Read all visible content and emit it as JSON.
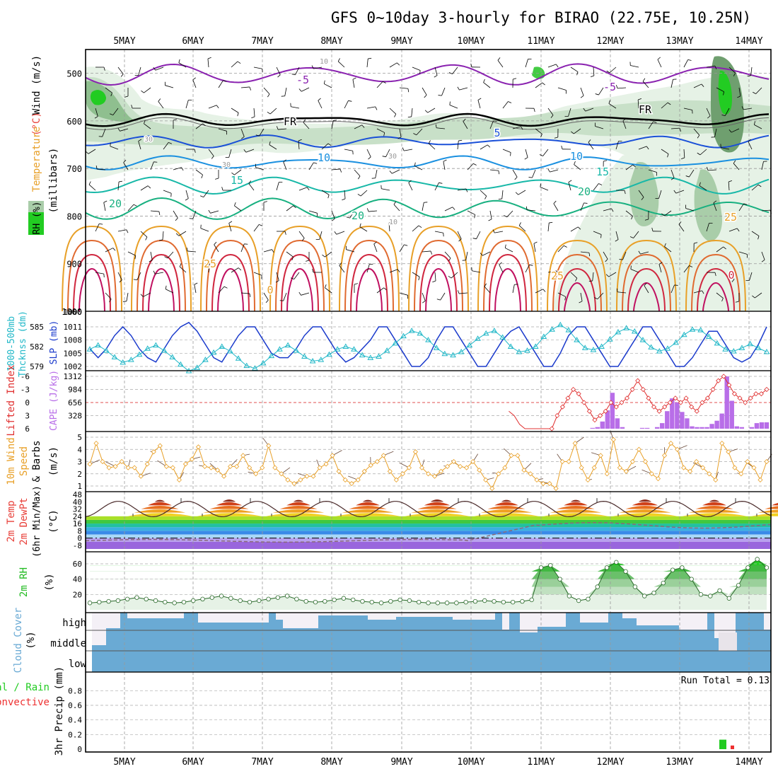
{
  "title": "GFS 0~10day 3-hourly for BIRAO (22.75E, 10.25N)",
  "days": [
    "5MAY",
    "6MAY",
    "7MAY",
    "8MAY",
    "9MAY",
    "10MAY",
    "11MAY",
    "12MAY",
    "13MAY",
    "14MAY"
  ],
  "colors": {
    "wind": "#000000",
    "temp_label": "#e8403a",
    "temp_word": "#e8a028",
    "rh_fill": "#22cc22",
    "slp": "#1a3acc",
    "thick": "#22b8c8",
    "li": "#e03030",
    "cape": "#b86ee8",
    "wind10": "#e8a028",
    "rh2m": "#22bb22",
    "cloud": "#6aaad4",
    "precip_total": "#22cc22",
    "precip_conv": "#ee3030",
    "dew": "#8a6a7a"
  },
  "panels": {
    "upper": {
      "y_label_wind": "Wind (m/s)",
      "y_label_temp_c": "(°C)",
      "y_label_temp": "Temperature",
      "y_label_rh": "RH (%)",
      "y_label_mb": "(millibars)",
      "y_ticks": [
        "500",
        "600",
        "700",
        "800",
        "900",
        "1000"
      ],
      "contours": {
        "labels": [
          {
            "text": "-5",
            "color": "#8a22b0"
          },
          {
            "text": "-5",
            "color": "#8a22b0"
          },
          {
            "text": "FR",
            "color": "#000000"
          },
          {
            "text": "FR",
            "color": "#000000"
          },
          {
            "text": "5",
            "color": "#1a50d8"
          },
          {
            "text": "10",
            "color": "#1a90e0"
          },
          {
            "text": "10",
            "color": "#1a90e0"
          },
          {
            "text": "15",
            "color": "#18b8a8"
          },
          {
            "text": "15",
            "color": "#18b8a8"
          },
          {
            "text": "20",
            "color": "#18b080"
          },
          {
            "text": "20",
            "color": "#18b080"
          },
          {
            "text": "20",
            "color": "#18b080"
          },
          {
            "text": "25",
            "color": "#e8a028"
          },
          {
            "text": "25",
            "color": "#e8a028"
          },
          {
            "text": "25",
            "color": "#e8a028"
          },
          {
            "text": "0",
            "color": "#e8a028"
          },
          {
            "text": "0",
            "color": "#d02840"
          },
          {
            "text": "10",
            "color": "#999999"
          },
          {
            "text": "30",
            "color": "#999999"
          },
          {
            "text": "30",
            "color": "#999999"
          },
          {
            "text": "30",
            "color": "#999999"
          },
          {
            "text": "10",
            "color": "#999999"
          }
        ]
      }
    },
    "thickness": {
      "y_label_left1": "1000-500mb",
      "y_label_left2": "Thcknss (dm)",
      "y_label_right": "SLP (mb)",
      "left_ticks": [
        "585",
        "582",
        "579"
      ],
      "right_ticks": [
        "1011",
        "1008",
        "1005",
        "1002"
      ]
    },
    "cape": {
      "y_label_li": "Lifted Index",
      "y_label_cape": "CAPE (J/kg)",
      "li_ticks": [
        "-6",
        "-3",
        "0",
        "3",
        "6"
      ],
      "cape_ticks": [
        "1312",
        "984",
        "656",
        "328"
      ]
    },
    "wind10": {
      "y_label_1": "10m Wind",
      "y_label_2": "Speed",
      "y_label_3": "& Barbs",
      "y_label_unit": "(m/s)",
      "y_ticks": [
        "5",
        "4",
        "3",
        "2",
        "1"
      ]
    },
    "temp2m": {
      "y_label_1": "2m Temp",
      "y_label_2": "2m DewPt",
      "y_label_3": "(6hr Min/Max)",
      "y_label_unit": "(°C)",
      "y_ticks": [
        "48",
        "40",
        "32",
        "24",
        "16",
        "8",
        "0",
        "-8"
      ]
    },
    "rh2m": {
      "y_label": "2m RH",
      "y_label_unit": "(%)",
      "y_ticks": [
        "60",
        "40",
        "20"
      ]
    },
    "cloud": {
      "y_label": "Cloud Cover",
      "y_label_unit": "(%)",
      "levels": [
        "high",
        "middle",
        "low"
      ]
    },
    "precip": {
      "y_label_1": "Total / Rain",
      "y_label_2": "Convective",
      "y_label_3": "3hr Precip (mm)",
      "y_ticks": [
        "0.8",
        "0.6",
        "0.4",
        "0.2",
        "0"
      ],
      "run_total": "Run Total = 0.13"
    }
  },
  "chart_data": [
    {
      "type": "line",
      "name_panel": "1000-500mb thickness and SLP",
      "series": [
        {
          "name": "SLP (mb)",
          "values": [
            1006,
            1004,
            1006,
            1009,
            1011,
            1009,
            1006,
            1004,
            1003,
            1006,
            1009,
            1011,
            1012,
            1010,
            1007,
            1004,
            1003,
            1006,
            1009,
            1011,
            1011,
            1008,
            1005,
            1004,
            1004,
            1006,
            1009,
            1011,
            1011,
            1008,
            1005,
            1003,
            1004,
            1006,
            1008,
            1011,
            1011,
            1008,
            1005,
            1002,
            1002,
            1004,
            1008,
            1011,
            1011,
            1008,
            1005,
            1002,
            1002,
            1005,
            1008,
            1010,
            1011,
            1008,
            1005,
            1002,
            1002,
            1005,
            1009,
            1011,
            1011,
            1008,
            1005,
            1002,
            1002,
            1005,
            1008,
            1011,
            1011,
            1008,
            1005,
            1002,
            1002,
            1004,
            1007,
            1010,
            1010,
            1007,
            1004,
            1003,
            1004,
            1007,
            1011
          ]
        },
        {
          "name": "1000-500mb thickness (dm)",
          "values": [
            581.6,
            582.2,
            581.4,
            580.4,
            579.6,
            580.0,
            580.8,
            581.7,
            582.2,
            581.4,
            580.4,
            579.3,
            578.3,
            578.8,
            580.0,
            581.1,
            582.0,
            581.3,
            580.2,
            579.1,
            578.7,
            579.5,
            580.6,
            581.6,
            582.2,
            581.4,
            580.5,
            579.8,
            580.0,
            580.8,
            581.6,
            582.0,
            581.6,
            580.7,
            580.3,
            580.5,
            581.4,
            582.5,
            583.6,
            584.4,
            584.0,
            583.0,
            581.8,
            580.9,
            580.7,
            581.2,
            582.2,
            583.2,
            584.0,
            584.4,
            583.4,
            582.0,
            581.2,
            581.4,
            582.0,
            583.5,
            584.6,
            585.3,
            584.5,
            583.0,
            581.8,
            581.5,
            582.0,
            583.1,
            584.2,
            584.8,
            584.3,
            583.0,
            581.9,
            581.3,
            581.7,
            582.6,
            583.8,
            584.6,
            584.5,
            583.5,
            582.5,
            581.6,
            581.3,
            581.8,
            582.4,
            581.8,
            581.2
          ]
        }
      ]
    },
    {
      "type": "bar",
      "name_panel": "CAPE and Lifted Index",
      "series": [
        {
          "name": "CAPE (J/kg)",
          "values": [
            0,
            0,
            0,
            0,
            0,
            0,
            0,
            0,
            0,
            0,
            0,
            0,
            0,
            0,
            0,
            0,
            0,
            0,
            0,
            0,
            0,
            0,
            0,
            0,
            0,
            0,
            0,
            0,
            0,
            0,
            0,
            0,
            0,
            0,
            0,
            0,
            0,
            0,
            0,
            0,
            0,
            0,
            0,
            0,
            0,
            0,
            0,
            0,
            0,
            0,
            0,
            0,
            0,
            0,
            0,
            0,
            0,
            0,
            0,
            0,
            0,
            0,
            0,
            0,
            0,
            0,
            0,
            0,
            0,
            0,
            0,
            0,
            0,
            0,
            0,
            0,
            0,
            0,
            0,
            0,
            0,
            0,
            0,
            0,
            0,
            0,
            0,
            0,
            0,
            0,
            0,
            0,
            0,
            0,
            0,
            0,
            0,
            0,
            0,
            0,
            0,
            20,
            40,
            180,
            460,
            900,
            260,
            40,
            0,
            0,
            0,
            20,
            20,
            0,
            40,
            140,
            440,
            760,
            660,
            420,
            260,
            60,
            40,
            40,
            40,
            120,
            200,
            380,
            1310,
            700,
            60,
            40,
            0,
            40,
            140,
            160,
            160
          ]
        },
        {
          "name": "Lifted Index",
          "values": [
            6,
            6,
            6,
            6,
            6,
            6,
            6,
            6,
            6,
            6,
            6,
            6,
            6,
            6,
            6,
            6,
            6,
            6,
            6,
            6,
            6,
            6,
            6,
            6,
            6,
            6,
            6,
            6,
            6,
            6,
            6,
            6,
            6,
            6,
            6,
            6,
            6,
            6,
            6,
            6,
            6,
            6,
            6,
            6,
            6,
            6,
            6,
            6,
            6,
            6,
            6,
            6,
            6,
            6,
            6,
            6,
            6,
            6,
            6,
            5,
            6,
            6,
            6,
            6,
            6,
            6,
            6,
            6,
            6,
            6,
            6,
            6,
            6,
            6,
            6,
            6,
            6,
            6,
            2,
            3,
            5,
            6,
            6,
            6,
            6,
            6,
            6,
            3,
            1,
            -1,
            -3,
            -2,
            0,
            2,
            4,
            3,
            2,
            0,
            1,
            0,
            -1,
            -3,
            -5,
            -3,
            -1,
            1,
            2,
            1,
            0,
            -1,
            0,
            -1,
            1,
            2,
            0,
            -1,
            -3,
            -5,
            -6,
            -4,
            -2,
            -1,
            0,
            -1,
            -2,
            -2,
            -3
          ]
        }
      ]
    },
    {
      "type": "line",
      "name_panel": "10m Wind Speed",
      "series": [
        {
          "name": "10m Wind Speed (m/s)",
          "values": [
            2.8,
            4.5,
            3.0,
            2.5,
            2.6,
            3.0,
            2.5,
            2.5,
            1.8,
            2.8,
            3.8,
            4.3,
            2.6,
            2.5,
            1.5,
            2.8,
            3.2,
            4.2,
            2.6,
            2.5,
            2.3,
            1.8,
            2.6,
            2.6,
            3.5,
            2.5,
            2.0,
            2.5,
            4.3,
            2.5,
            2.0,
            1.5,
            1.2,
            1.5,
            1.8,
            1.8,
            2.5,
            2.8,
            3.5,
            2.2,
            1.5,
            1.2,
            1.5,
            2.2,
            2.7,
            3.0,
            3.5,
            2.2,
            1.5,
            2.0,
            2.5,
            3.8,
            2.5,
            2.0,
            1.8,
            2.2,
            2.6,
            3.0,
            2.6,
            2.5,
            3.0,
            2.3,
            1.5,
            0.8,
            2.0,
            2.5,
            3.5,
            3.5,
            2.3,
            2.0,
            1.5,
            1.2,
            1.2,
            0.8,
            3.0,
            3.0,
            4.5,
            2.5,
            1.5,
            2.5,
            3.5,
            2.0,
            4.8,
            2.5,
            2.2,
            3.0,
            4.0,
            3.0,
            2.0,
            1.6,
            3.5,
            4.5,
            4.0,
            2.5,
            2.2,
            3.0,
            2.5,
            2.0,
            1.5,
            4.5,
            3.8,
            2.5,
            2.0,
            3.0,
            2.5,
            1.5,
            3.0
          ]
        }
      ]
    },
    {
      "type": "line",
      "name_panel": "2m RH",
      "series": [
        {
          "name": "2m RH (%)",
          "values": [
            9,
            10,
            11,
            12,
            14,
            16,
            14,
            12,
            10,
            9,
            10,
            12,
            14,
            16,
            18,
            15,
            12,
            10,
            12,
            14,
            16,
            18,
            14,
            11,
            10,
            11,
            13,
            15,
            13,
            11,
            10,
            9,
            11,
            13,
            12,
            10,
            9,
            9,
            9,
            9,
            10,
            11,
            12,
            11,
            10,
            10,
            11,
            13,
            55,
            58,
            40,
            18,
            12,
            14,
            30,
            55,
            62,
            50,
            30,
            18,
            22,
            35,
            52,
            55,
            40,
            20,
            18,
            25,
            15,
            32,
            55,
            66,
            55
          ]
        }
      ]
    },
    {
      "type": "bar",
      "name_panel": "3hr Precip",
      "categories": [
        "13MAY 15Z",
        "13MAY 18Z"
      ],
      "series": [
        {
          "name": "Total / Rain",
          "values": [
            0.13,
            0
          ]
        },
        {
          "name": "Convective",
          "values": [
            0,
            0.05
          ]
        }
      ]
    }
  ]
}
